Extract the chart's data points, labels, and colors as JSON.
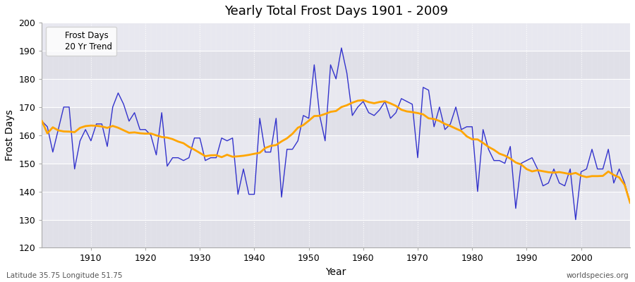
{
  "title": "Yearly Total Frost Days 1901 - 2009",
  "xlabel": "Year",
  "ylabel": "Frost Days",
  "footnote_left": "Latitude 35.75 Longitude 51.75",
  "footnote_right": "worldspecies.org",
  "ylim": [
    120,
    200
  ],
  "xlim": [
    1901,
    2009
  ],
  "line_color": "#3333cc",
  "trend_color": "#FFA500",
  "bg_color": "#ffffff",
  "plot_bg_color": "#e8e8e8",
  "years": [
    1901,
    1902,
    1903,
    1904,
    1905,
    1906,
    1907,
    1908,
    1909,
    1910,
    1911,
    1912,
    1913,
    1914,
    1915,
    1916,
    1917,
    1918,
    1919,
    1920,
    1921,
    1922,
    1923,
    1924,
    1925,
    1926,
    1927,
    1928,
    1929,
    1930,
    1931,
    1932,
    1933,
    1934,
    1935,
    1936,
    1937,
    1938,
    1939,
    1940,
    1941,
    1942,
    1943,
    1944,
    1945,
    1946,
    1947,
    1948,
    1949,
    1950,
    1951,
    1952,
    1953,
    1954,
    1955,
    1956,
    1957,
    1958,
    1959,
    1960,
    1961,
    1962,
    1963,
    1964,
    1965,
    1966,
    1967,
    1968,
    1969,
    1970,
    1971,
    1972,
    1973,
    1974,
    1975,
    1976,
    1977,
    1978,
    1979,
    1980,
    1981,
    1982,
    1983,
    1984,
    1985,
    1986,
    1987,
    1988,
    1989,
    1990,
    1991,
    1992,
    1993,
    1994,
    1995,
    1996,
    1997,
    1998,
    1999,
    2000,
    2001,
    2002,
    2003,
    2004,
    2005,
    2006,
    2007,
    2008,
    2009
  ],
  "frost_days": [
    165,
    163,
    154,
    162,
    170,
    170,
    148,
    158,
    162,
    158,
    164,
    164,
    156,
    170,
    175,
    171,
    165,
    168,
    162,
    162,
    160,
    153,
    168,
    149,
    152,
    152,
    151,
    152,
    159,
    159,
    151,
    152,
    152,
    159,
    158,
    159,
    139,
    148,
    139,
    139,
    166,
    154,
    154,
    166,
    138,
    155,
    155,
    158,
    167,
    166,
    185,
    167,
    158,
    185,
    180,
    191,
    182,
    167,
    170,
    172,
    168,
    167,
    169,
    172,
    166,
    168,
    173,
    172,
    171,
    152,
    177,
    176,
    163,
    170,
    162,
    164,
    170,
    162,
    163,
    163,
    140,
    162,
    155,
    151,
    151,
    150,
    156,
    134,
    150,
    151,
    152,
    148,
    142,
    143,
    148,
    143,
    142,
    148,
    130,
    147,
    148,
    155,
    148,
    148,
    155,
    143,
    148,
    143,
    136
  ],
  "ytick_bands": [
    120,
    130,
    140,
    150,
    160,
    170,
    180,
    190,
    200
  ]
}
